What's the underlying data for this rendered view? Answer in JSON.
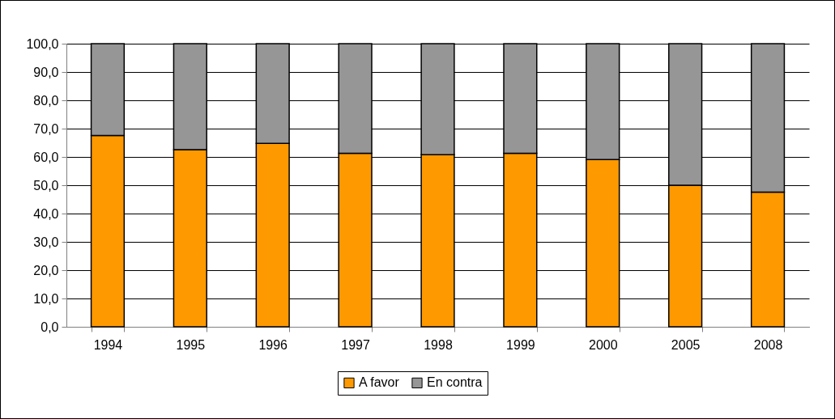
{
  "chart_data": {
    "type": "bar",
    "stacked": true,
    "categories": [
      "1994",
      "1995",
      "1996",
      "1997",
      "1998",
      "1999",
      "2000",
      "2005",
      "2008"
    ],
    "series": [
      {
        "name": "A favor",
        "color": "#ff9900",
        "values": [
          67.6,
          62.6,
          64.8,
          61.3,
          60.8,
          61.3,
          59.1,
          50.0,
          47.6
        ]
      },
      {
        "name": "En contra",
        "color": "#969696",
        "values": [
          32.4,
          37.4,
          35.2,
          38.7,
          39.2,
          38.7,
          40.9,
          50.0,
          52.4
        ]
      }
    ],
    "ylim": [
      0,
      100
    ],
    "yticks": [
      {
        "value": 0,
        "label": "0,0"
      },
      {
        "value": 10,
        "label": "10,0"
      },
      {
        "value": 20,
        "label": "20,0"
      },
      {
        "value": 30,
        "label": "30,0"
      },
      {
        "value": 40,
        "label": "40,0"
      },
      {
        "value": 50,
        "label": "50,0"
      },
      {
        "value": 60,
        "label": "60,0"
      },
      {
        "value": 70,
        "label": "70,0"
      },
      {
        "value": 80,
        "label": "80,0"
      },
      {
        "value": 90,
        "label": "90,0"
      },
      {
        "value": 100,
        "label": "100,0"
      }
    ],
    "grid": "y",
    "legend": "bottom"
  }
}
